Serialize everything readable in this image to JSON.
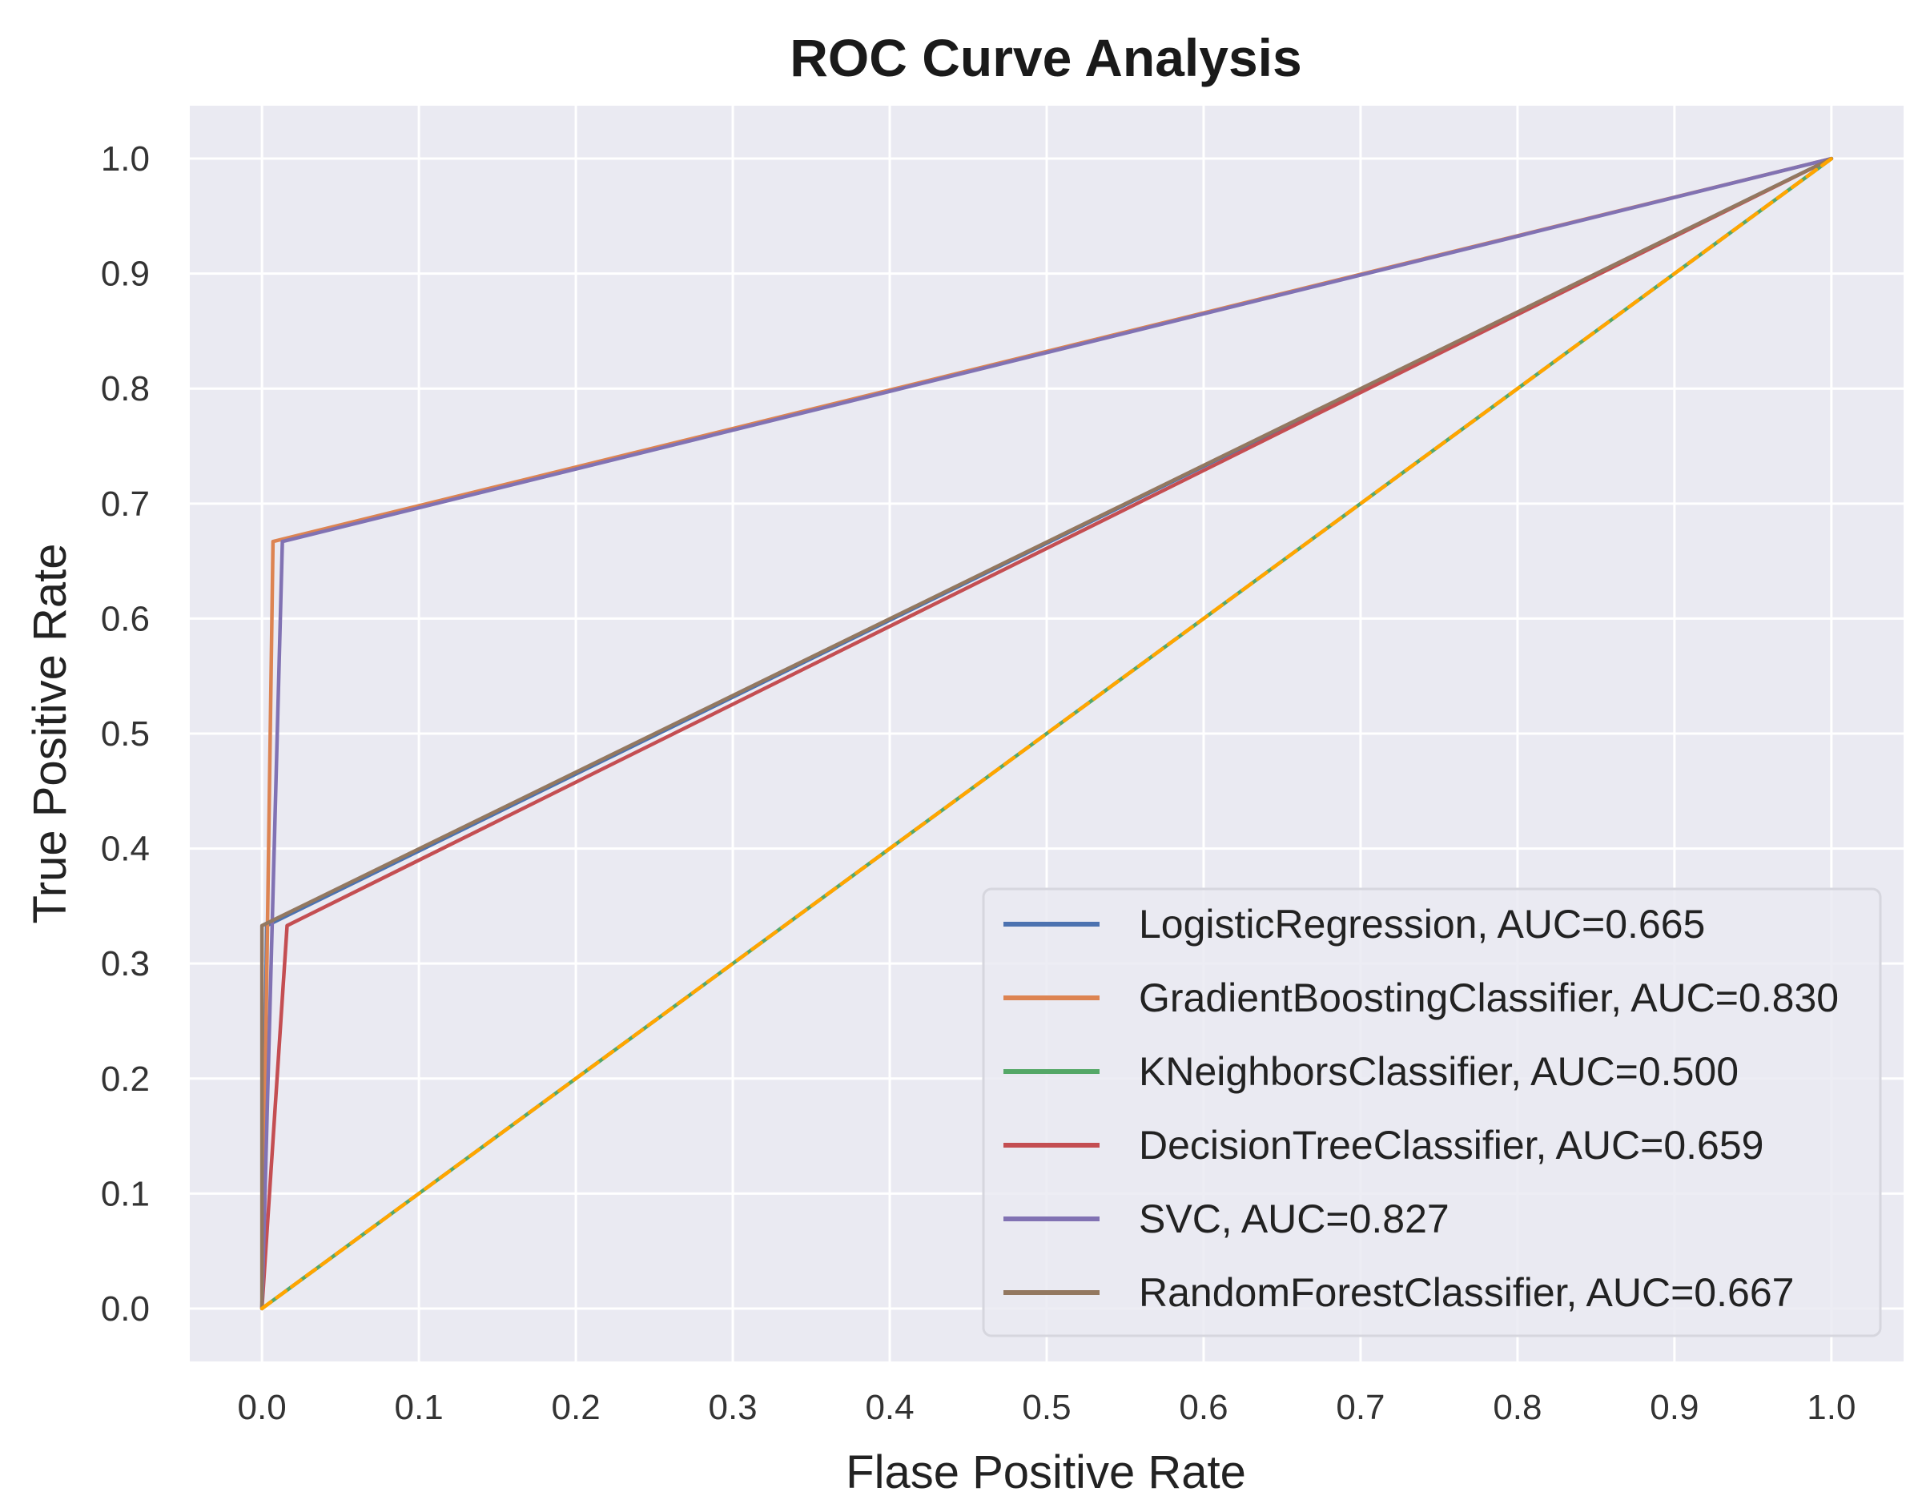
{
  "chart_data": {
    "type": "line",
    "title": "ROC Curve Analysis",
    "xlabel": "Flase Positive Rate",
    "ylabel": "True Positive Rate",
    "xlim": [
      -0.046,
      1.046
    ],
    "ylim": [
      -0.046,
      1.046
    ],
    "xticks": [
      0.0,
      0.1,
      0.2,
      0.3,
      0.4,
      0.5,
      0.6,
      0.7,
      0.8,
      0.9,
      1.0
    ],
    "yticks": [
      0.0,
      0.1,
      0.2,
      0.3,
      0.4,
      0.5,
      0.6,
      0.7,
      0.8,
      0.9,
      1.0
    ],
    "tick_labels": [
      "0.0",
      "0.1",
      "0.2",
      "0.3",
      "0.4",
      "0.5",
      "0.6",
      "0.7",
      "0.8",
      "0.9",
      "1.0"
    ],
    "grid": true,
    "legend_position": "lower-right",
    "series": [
      {
        "name": "LogisticRegression",
        "label": "LogisticRegression, AUC=0.665",
        "color": "#4c72b0",
        "x": [
          0.0,
          0.003,
          1.0
        ],
        "y": [
          0.0,
          0.333,
          1.0
        ]
      },
      {
        "name": "GradientBoostingClassifier",
        "label": "GradientBoostingClassifier, AUC=0.830",
        "color": "#dd8452",
        "x": [
          0.0,
          0.007,
          1.0
        ],
        "y": [
          0.0,
          0.667,
          1.0
        ]
      },
      {
        "name": "KNeighborsClassifier",
        "label": "KNeighborsClassifier, AUC=0.500",
        "color": "#55a868",
        "x": [
          0.0,
          1.0
        ],
        "y": [
          0.0,
          1.0
        ]
      },
      {
        "name": "DecisionTreeClassifier",
        "label": "DecisionTreeClassifier, AUC=0.659",
        "color": "#c44e52",
        "x": [
          0.0,
          0.016,
          1.0
        ],
        "y": [
          0.0,
          0.333,
          1.0
        ]
      },
      {
        "name": "SVC",
        "label": "SVC, AUC=0.827",
        "color": "#8172b3",
        "x": [
          0.0,
          0.013,
          1.0
        ],
        "y": [
          0.0,
          0.667,
          1.0
        ]
      },
      {
        "name": "RandomForestClassifier",
        "label": "RandomForestClassifier, AUC=0.667",
        "color": "#937860",
        "x": [
          0.0,
          0.0,
          1.0
        ],
        "y": [
          0.0,
          0.333,
          1.0
        ]
      }
    ],
    "reference_line": {
      "name": "chance",
      "color": "#ffa500",
      "x": [
        0.0,
        1.0
      ],
      "y": [
        0.0,
        1.0
      ]
    }
  }
}
